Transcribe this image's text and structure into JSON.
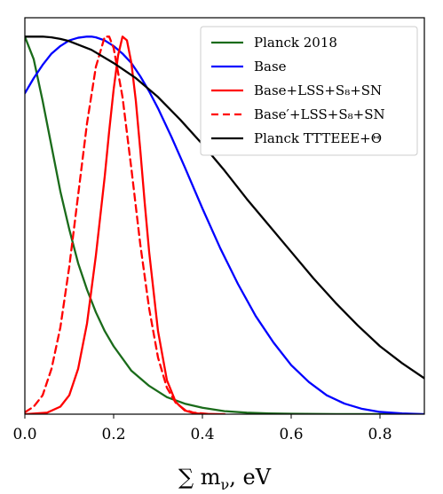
{
  "chart_data": {
    "type": "line",
    "xlabel": "∑ m_ν, eV",
    "ylabel": "",
    "xlim": [
      0.0,
      0.9
    ],
    "ylim": [
      0.0,
      1.05
    ],
    "xticks": [
      "0.0",
      "0.2",
      "0.4",
      "0.6",
      "0.8"
    ],
    "xtick_values": [
      0.0,
      0.2,
      0.4,
      0.6,
      0.8
    ],
    "grid": false,
    "legend_position": "top-right",
    "series": [
      {
        "name": "Planck 2018",
        "color": "#1a6b1a",
        "dash": "solid",
        "x": [
          0.0,
          0.02,
          0.04,
          0.06,
          0.08,
          0.1,
          0.12,
          0.14,
          0.16,
          0.18,
          0.2,
          0.24,
          0.28,
          0.32,
          0.36,
          0.4,
          0.45,
          0.5,
          0.55,
          0.6,
          0.7,
          0.8,
          0.9
        ],
        "y": [
          1.0,
          0.94,
          0.83,
          0.71,
          0.59,
          0.49,
          0.4,
          0.33,
          0.27,
          0.22,
          0.18,
          0.115,
          0.075,
          0.045,
          0.028,
          0.017,
          0.008,
          0.004,
          0.002,
          0.001,
          0.0003,
          0.0001,
          0.0
        ]
      },
      {
        "name": "Base",
        "color": "#0000ff",
        "dash": "solid",
        "x": [
          0.0,
          0.02,
          0.04,
          0.06,
          0.08,
          0.1,
          0.12,
          0.14,
          0.15,
          0.16,
          0.18,
          0.2,
          0.22,
          0.24,
          0.26,
          0.28,
          0.3,
          0.33,
          0.36,
          0.4,
          0.44,
          0.48,
          0.52,
          0.56,
          0.6,
          0.64,
          0.68,
          0.72,
          0.76,
          0.8,
          0.85,
          0.9
        ],
        "y": [
          0.85,
          0.89,
          0.925,
          0.955,
          0.975,
          0.99,
          0.997,
          1.0,
          1.0,
          0.998,
          0.99,
          0.975,
          0.955,
          0.93,
          0.895,
          0.855,
          0.81,
          0.735,
          0.655,
          0.545,
          0.44,
          0.345,
          0.26,
          0.19,
          0.13,
          0.085,
          0.05,
          0.028,
          0.014,
          0.006,
          0.002,
          0.0
        ]
      },
      {
        "name": "Base+LSS+S₈+SN",
        "color": "#ff0000",
        "dash": "solid",
        "x": [
          0.0,
          0.05,
          0.08,
          0.1,
          0.12,
          0.14,
          0.16,
          0.18,
          0.19,
          0.2,
          0.21,
          0.22,
          0.23,
          0.24,
          0.25,
          0.26,
          0.27,
          0.28,
          0.3,
          0.32,
          0.34,
          0.36,
          0.38,
          0.4,
          0.45
        ],
        "y": [
          0.0,
          0.004,
          0.02,
          0.05,
          0.12,
          0.24,
          0.42,
          0.63,
          0.75,
          0.86,
          0.95,
          1.0,
          0.99,
          0.93,
          0.83,
          0.7,
          0.56,
          0.43,
          0.22,
          0.09,
          0.032,
          0.01,
          0.003,
          0.0008,
          0.0
        ]
      },
      {
        "name": "Base′+LSS+S₈+SN",
        "color": "#ff0000",
        "dash": "dashed",
        "x": [
          0.0,
          0.02,
          0.04,
          0.06,
          0.08,
          0.1,
          0.12,
          0.14,
          0.16,
          0.18,
          0.19,
          0.2,
          0.22,
          0.24,
          0.26,
          0.28,
          0.3,
          0.32,
          0.34,
          0.36,
          0.38,
          0.42
        ],
        "y": [
          0.005,
          0.02,
          0.05,
          0.12,
          0.23,
          0.39,
          0.58,
          0.77,
          0.92,
          1.0,
          1.0,
          0.97,
          0.84,
          0.65,
          0.45,
          0.28,
          0.15,
          0.07,
          0.03,
          0.012,
          0.004,
          0.0
        ]
      },
      {
        "name": "Planck TTTEEE+Θ",
        "color": "#000000",
        "dash": "solid",
        "x": [
          0.0,
          0.02,
          0.04,
          0.06,
          0.08,
          0.1,
          0.15,
          0.2,
          0.25,
          0.3,
          0.35,
          0.4,
          0.45,
          0.5,
          0.55,
          0.6,
          0.65,
          0.7,
          0.75,
          0.8,
          0.85,
          0.9
        ],
        "y": [
          1.0,
          1.0,
          1.0,
          0.998,
          0.994,
          0.988,
          0.965,
          0.93,
          0.89,
          0.84,
          0.78,
          0.715,
          0.645,
          0.57,
          0.5,
          0.43,
          0.36,
          0.295,
          0.235,
          0.18,
          0.135,
          0.095
        ]
      }
    ]
  }
}
